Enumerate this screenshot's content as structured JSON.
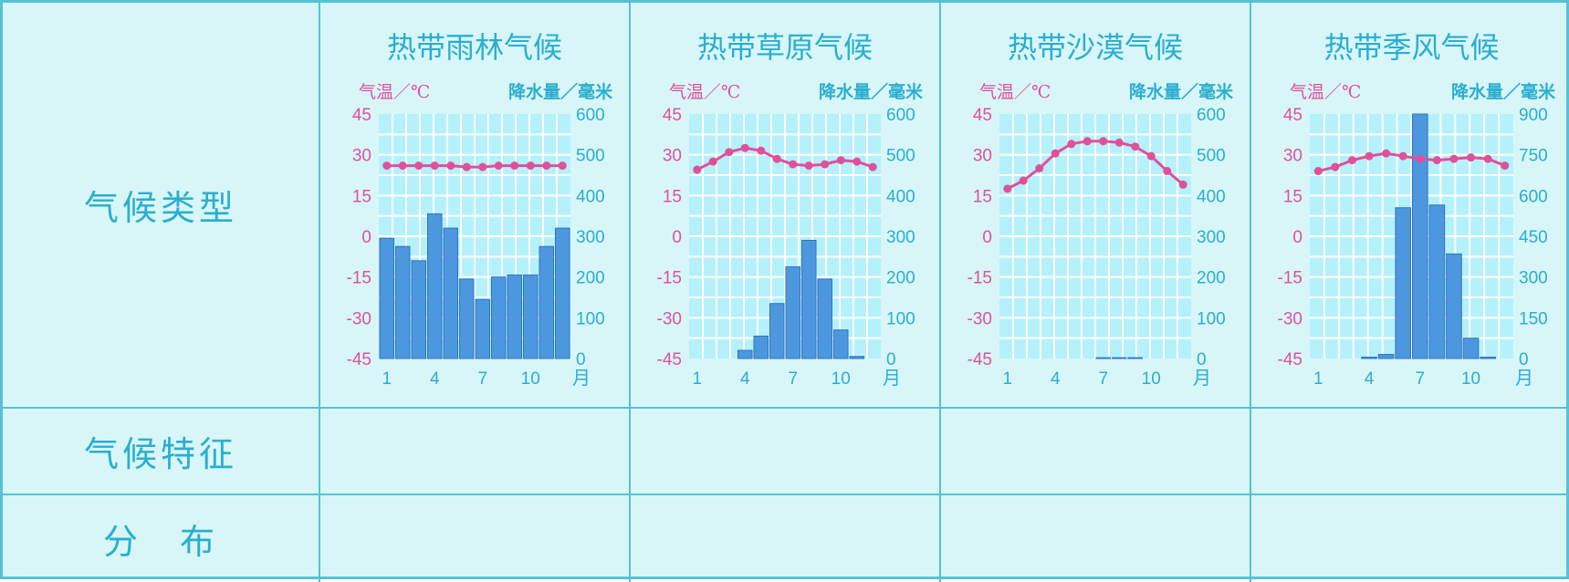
{
  "row_labels": {
    "type": "气候类型",
    "features": "气候特征",
    "distribution": "分　布"
  },
  "colors": {
    "border": "#55c2d4",
    "cell_bg": "#d8f6f8",
    "plot_bg": "#b5f1fb",
    "grid": "#ffffff",
    "bar": "#4d97df",
    "bar_edge": "#2f73c3",
    "temp_line": "#e0509a",
    "temp_axis": "#e0509a",
    "precip_axis": "#2aaed0",
    "title": "#2aaed0"
  },
  "chart_data": [
    {
      "type": "bar+line",
      "title": "热带雨林气候",
      "left_axis_label": "气温／℃",
      "right_axis_label": "降水量／毫米",
      "temp_ticks": [
        "45",
        "30",
        "15",
        "0",
        "-15",
        "-30",
        "-45"
      ],
      "temp_range": [
        -45,
        45
      ],
      "precip_ticks": [
        "600",
        "500",
        "400",
        "300",
        "200",
        "100",
        "0"
      ],
      "precip_range": [
        0,
        600
      ],
      "x_ticks": [
        "1",
        "4",
        "7",
        "10"
      ],
      "x_unit": "月",
      "months": [
        1,
        2,
        3,
        4,
        5,
        6,
        7,
        8,
        9,
        10,
        11,
        12
      ],
      "temperature": [
        26,
        26,
        26,
        26,
        26,
        25.5,
        25.5,
        26,
        26,
        26,
        26,
        26
      ],
      "precipitation": [
        295,
        275,
        240,
        355,
        320,
        195,
        145,
        200,
        205,
        205,
        275,
        320
      ]
    },
    {
      "type": "bar+line",
      "title": "热带草原气候",
      "left_axis_label": "气温／℃",
      "right_axis_label": "降水量／毫米",
      "temp_ticks": [
        "45",
        "30",
        "15",
        "0",
        "-15",
        "-30",
        "-45"
      ],
      "temp_range": [
        -45,
        45
      ],
      "precip_ticks": [
        "600",
        "500",
        "400",
        "300",
        "200",
        "100",
        "0"
      ],
      "precip_range": [
        0,
        600
      ],
      "x_ticks": [
        "1",
        "4",
        "7",
        "10"
      ],
      "x_unit": "月",
      "months": [
        1,
        2,
        3,
        4,
        5,
        6,
        7,
        8,
        9,
        10,
        11,
        12
      ],
      "temperature": [
        24.5,
        27.5,
        31,
        32.5,
        31.5,
        28.5,
        26.5,
        26,
        26.5,
        28,
        27.5,
        25.5
      ],
      "precipitation": [
        0,
        0,
        0,
        20,
        55,
        135,
        225,
        290,
        195,
        70,
        5,
        0
      ]
    },
    {
      "type": "bar+line",
      "title": "热带沙漠气候",
      "left_axis_label": "气温／℃",
      "right_axis_label": "降水量／毫米",
      "temp_ticks": [
        "45",
        "30",
        "15",
        "0",
        "-15",
        "-30",
        "-45"
      ],
      "temp_range": [
        -45,
        45
      ],
      "precip_ticks": [
        "600",
        "500",
        "400",
        "300",
        "200",
        "100",
        "0"
      ],
      "precip_range": [
        0,
        600
      ],
      "x_ticks": [
        "1",
        "4",
        "7",
        "10"
      ],
      "x_unit": "月",
      "months": [
        1,
        2,
        3,
        4,
        5,
        6,
        7,
        8,
        9,
        10,
        11,
        12
      ],
      "temperature": [
        17.5,
        20.5,
        25,
        30.5,
        34,
        35,
        35,
        34.5,
        33,
        29.5,
        24,
        19
      ],
      "precipitation": [
        0,
        0,
        0,
        0,
        0,
        0,
        2,
        2,
        2,
        0,
        0,
        0
      ]
    },
    {
      "type": "bar+line",
      "title": "热带季风气候",
      "left_axis_label": "气温／℃",
      "right_axis_label": "降水量／毫米",
      "temp_ticks": [
        "45",
        "30",
        "15",
        "0",
        "-15",
        "-30",
        "-45"
      ],
      "temp_range": [
        -45,
        45
      ],
      "precip_ticks": [
        "900",
        "750",
        "600",
        "450",
        "300",
        "150",
        "0"
      ],
      "precip_range": [
        0,
        900
      ],
      "x_ticks": [
        "1",
        "4",
        "7",
        "10"
      ],
      "x_unit": "月",
      "months": [
        1,
        2,
        3,
        4,
        5,
        6,
        7,
        8,
        9,
        10,
        11,
        12
      ],
      "temperature": [
        24,
        25.5,
        28,
        29.5,
        30.5,
        29.5,
        28.5,
        28,
        28.5,
        29,
        28.5,
        26
      ],
      "precipitation": [
        0,
        0,
        0,
        5,
        15,
        555,
        905,
        565,
        385,
        75,
        5,
        0
      ]
    }
  ]
}
